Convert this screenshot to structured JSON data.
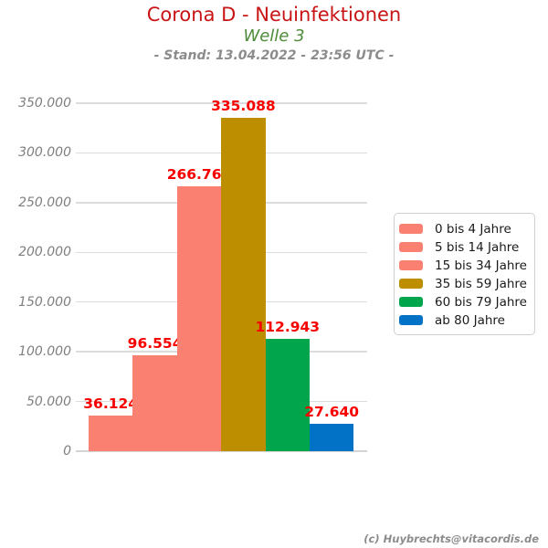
{
  "header": {
    "title": "Corona D - Neuinfektionen",
    "subtitle": "Welle 3",
    "stand": "- Stand: 13.04.2022 - 23:56 UTC -"
  },
  "chart_data": {
    "type": "bar",
    "title": "Corona D - Neuinfektionen",
    "subtitle": "Welle 3",
    "stand": "- Stand: 13.04.2022 - 23:56 UTC -",
    "categories": [
      "0 bis 4 Jahre",
      "5 bis 14 Jahre",
      "15 bis 34 Jahre",
      "35 bis 59 Jahre",
      "60 bis 79 Jahre",
      "ab 80 Jahre"
    ],
    "values": [
      36124,
      96554,
      266762,
      335088,
      112943,
      27640
    ],
    "value_labels": [
      "36.124",
      "96.554",
      "266.762",
      "335.088",
      "112.943",
      "27.640"
    ],
    "bar_colors": [
      "#FA8072",
      "#FA8072",
      "#FA8072",
      "#BD8E00",
      "#00A54C",
      "#0272C6"
    ],
    "xlabel": "",
    "ylabel": "",
    "ylim": [
      0,
      350000
    ],
    "ytick_step": 50000,
    "ytick_labels": [
      "0",
      "50.000",
      "100.000",
      "150.000",
      "200.000",
      "250.000",
      "300.000",
      "350.000"
    ],
    "grid": true,
    "legend_position": "right"
  },
  "footer": {
    "credit": "(c) Huybrechts@vitacordis.de"
  },
  "colors": {
    "title": "#C81414",
    "subtitle": "#4E8B3A",
    "stand": "#8C8C8C",
    "value_label": "#F80000",
    "axis_label": "#7F7F7F",
    "gridline": "#DCDCDC",
    "legend_border": "#CFCFCF"
  }
}
